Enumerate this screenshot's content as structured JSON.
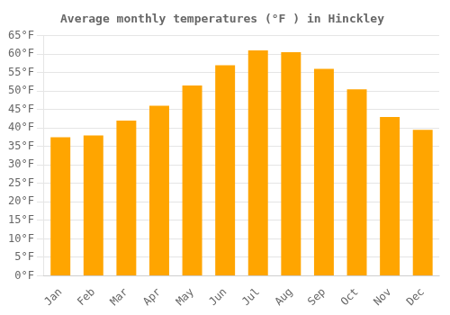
{
  "chart_data": {
    "type": "bar",
    "title": "Average monthly temperatures (°F ) in Hinckley",
    "categories": [
      "Jan",
      "Feb",
      "Mar",
      "Apr",
      "May",
      "Jun",
      "Jul",
      "Aug",
      "Sep",
      "Oct",
      "Nov",
      "Dec"
    ],
    "values": [
      37.5,
      38.0,
      42.0,
      46.0,
      51.5,
      57.0,
      61.0,
      60.5,
      56.0,
      50.5,
      43.0,
      39.5
    ],
    "color": "#FFA500",
    "ylim": [
      0,
      65
    ],
    "yticks": [
      {
        "value": 0,
        "label": "0°F"
      },
      {
        "value": 5,
        "label": "5°F"
      },
      {
        "value": 10,
        "label": "10°F"
      },
      {
        "value": 15,
        "label": "15°F"
      },
      {
        "value": 20,
        "label": "20°F"
      },
      {
        "value": 25,
        "label": "25°F"
      },
      {
        "value": 30,
        "label": "30°F"
      },
      {
        "value": 35,
        "label": "35°F"
      },
      {
        "value": 40,
        "label": "40°F"
      },
      {
        "value": 45,
        "label": "45°F"
      },
      {
        "value": 50,
        "label": "50°F"
      },
      {
        "value": 55,
        "label": "55°F"
      },
      {
        "value": 60,
        "label": "60°F"
      },
      {
        "value": 65,
        "label": "65°F"
      }
    ],
    "grid": true
  }
}
